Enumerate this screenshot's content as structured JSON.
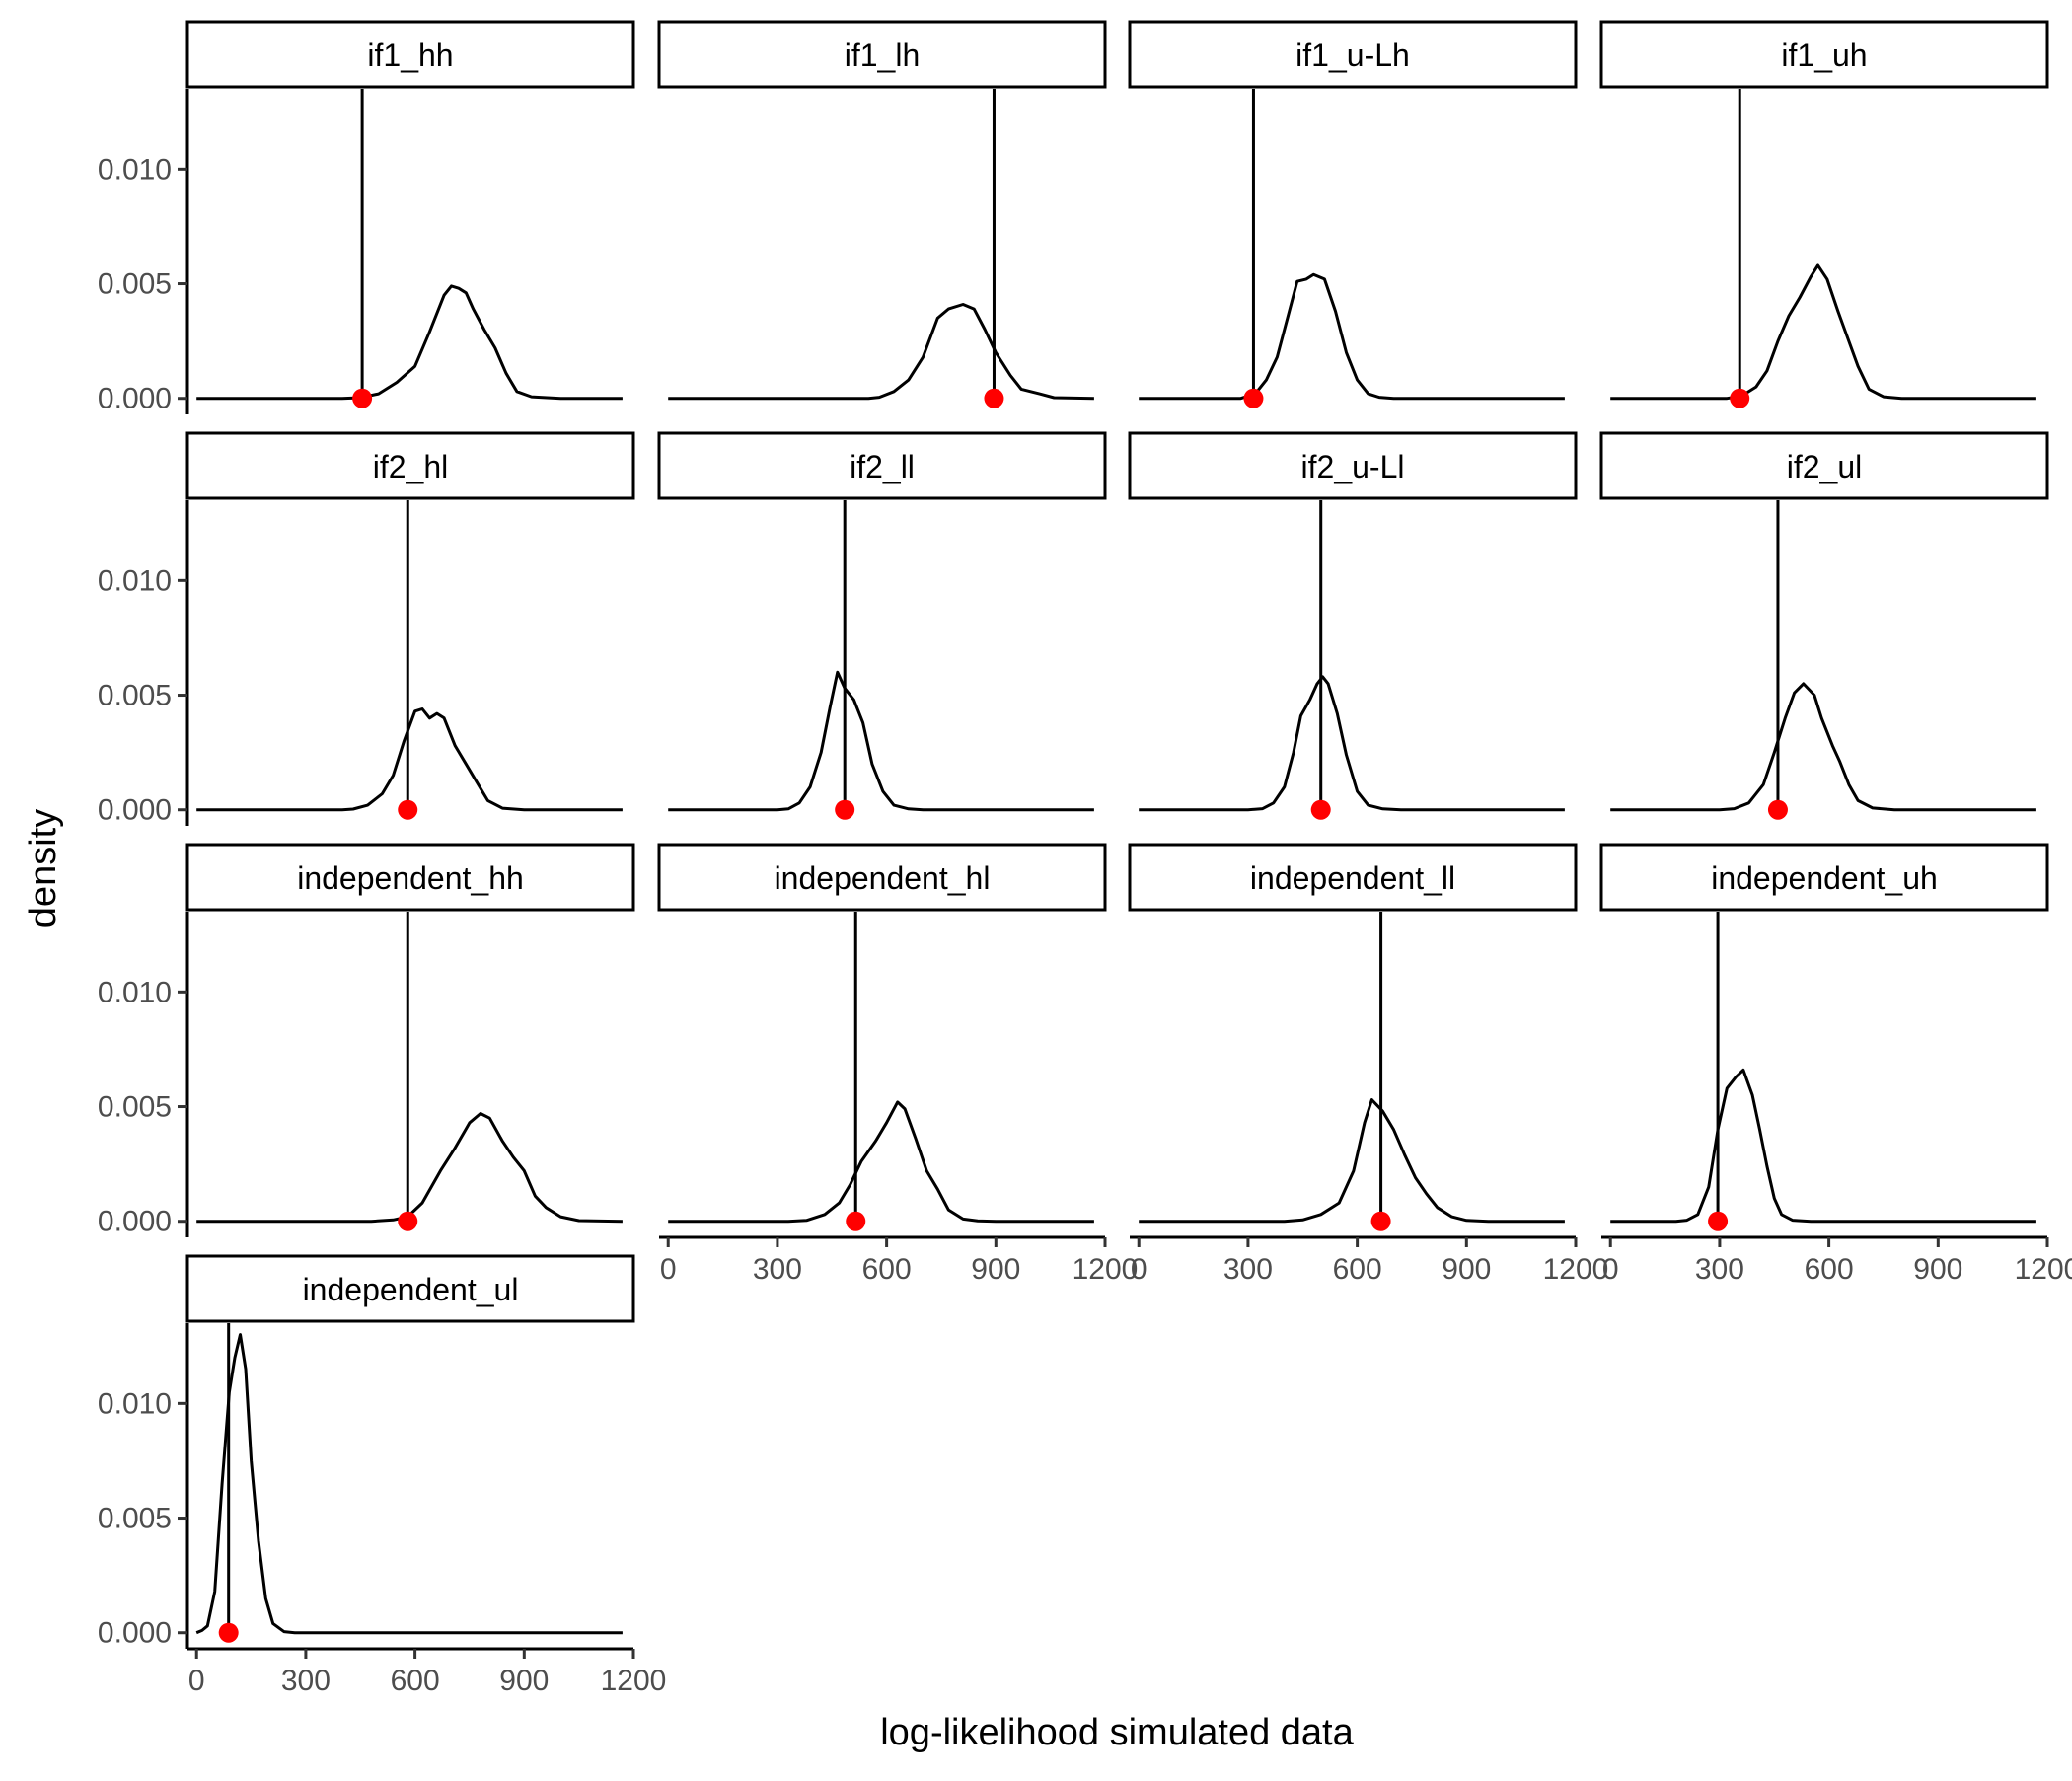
{
  "chart_data": {
    "type": "line",
    "title": "",
    "xlabel": "log-likelihood simulated data",
    "ylabel": "density",
    "xlim": [
      -25,
      1200
    ],
    "ylim": [
      -0.0007,
      0.0135
    ],
    "x_ticks": [
      0,
      300,
      600,
      900,
      1200
    ],
    "x_tick_labels": [
      "0",
      "300",
      "600",
      "900",
      "1200"
    ],
    "y_ticks": [
      0.0,
      0.005,
      0.01
    ],
    "y_tick_labels": [
      "0.000",
      "0.005",
      "0.010"
    ],
    "grid": false,
    "layout": "facet wrap, 4 columns",
    "colors": {
      "density_line": "#000000",
      "observed_point": "#ff0000",
      "observed_line": "#000000"
    },
    "panels": [
      {
        "label": "if1_hh",
        "observed": 455,
        "density": [
          [
            0,
            0
          ],
          [
            400,
            0
          ],
          [
            450,
            3e-05
          ],
          [
            500,
            0.0002
          ],
          [
            550,
            0.0007
          ],
          [
            600,
            0.0014
          ],
          [
            640,
            0.0029
          ],
          [
            680,
            0.0045
          ],
          [
            700,
            0.0049
          ],
          [
            720,
            0.0048
          ],
          [
            740,
            0.0046
          ],
          [
            760,
            0.0039
          ],
          [
            790,
            0.003
          ],
          [
            820,
            0.0022
          ],
          [
            850,
            0.0011
          ],
          [
            880,
            0.0003
          ],
          [
            920,
            7e-05
          ],
          [
            1000,
            0
          ],
          [
            1170,
            0
          ]
        ]
      },
      {
        "label": "if1_lh",
        "observed": 895,
        "density": [
          [
            0,
            0
          ],
          [
            550,
            0
          ],
          [
            580,
            5e-05
          ],
          [
            620,
            0.0003
          ],
          [
            660,
            0.0008
          ],
          [
            700,
            0.0018
          ],
          [
            740,
            0.0035
          ],
          [
            770,
            0.0039
          ],
          [
            810,
            0.0041
          ],
          [
            840,
            0.0039
          ],
          [
            870,
            0.003
          ],
          [
            900,
            0.002
          ],
          [
            940,
            0.001
          ],
          [
            970,
            0.0004
          ],
          [
            1020,
            0.0002
          ],
          [
            1060,
            3e-05
          ],
          [
            1170,
            0
          ]
        ]
      },
      {
        "label": "if1_u-Lh",
        "observed": 315,
        "density": [
          [
            0,
            0
          ],
          [
            280,
            0
          ],
          [
            320,
            0.0002
          ],
          [
            350,
            0.0008
          ],
          [
            380,
            0.0018
          ],
          [
            410,
            0.0036
          ],
          [
            435,
            0.0051
          ],
          [
            460,
            0.0052
          ],
          [
            480,
            0.0054
          ],
          [
            510,
            0.0052
          ],
          [
            540,
            0.0038
          ],
          [
            570,
            0.002
          ],
          [
            600,
            0.0008
          ],
          [
            630,
            0.0002
          ],
          [
            660,
            5e-05
          ],
          [
            700,
            0
          ],
          [
            1170,
            0
          ]
        ]
      },
      {
        "label": "if1_uh",
        "observed": 355,
        "density": [
          [
            0,
            0
          ],
          [
            320,
            0
          ],
          [
            360,
            0.0001
          ],
          [
            400,
            0.0005
          ],
          [
            430,
            0.0012
          ],
          [
            460,
            0.0025
          ],
          [
            490,
            0.0036
          ],
          [
            520,
            0.0044
          ],
          [
            550,
            0.0053
          ],
          [
            570,
            0.0058
          ],
          [
            595,
            0.0052
          ],
          [
            625,
            0.0038
          ],
          [
            650,
            0.0027
          ],
          [
            680,
            0.0014
          ],
          [
            710,
            0.0004
          ],
          [
            750,
            7e-05
          ],
          [
            800,
            0
          ],
          [
            1170,
            0
          ]
        ]
      },
      {
        "label": "if2_hl",
        "observed": 580,
        "density": [
          [
            0,
            0
          ],
          [
            400,
            0
          ],
          [
            430,
            3e-05
          ],
          [
            470,
            0.0002
          ],
          [
            510,
            0.0007
          ],
          [
            540,
            0.0015
          ],
          [
            570,
            0.003
          ],
          [
            600,
            0.0043
          ],
          [
            620,
            0.0044
          ],
          [
            640,
            0.004
          ],
          [
            660,
            0.0042
          ],
          [
            680,
            0.004
          ],
          [
            710,
            0.0028
          ],
          [
            740,
            0.002
          ],
          [
            770,
            0.0012
          ],
          [
            800,
            0.0004
          ],
          [
            840,
            7e-05
          ],
          [
            900,
            0
          ],
          [
            1170,
            0
          ]
        ]
      },
      {
        "label": "if2_ll",
        "observed": 485,
        "density": [
          [
            0,
            0
          ],
          [
            300,
            0
          ],
          [
            330,
            4e-05
          ],
          [
            360,
            0.0003
          ],
          [
            390,
            0.001
          ],
          [
            420,
            0.0025
          ],
          [
            445,
            0.0045
          ],
          [
            465,
            0.006
          ],
          [
            485,
            0.0053
          ],
          [
            510,
            0.0048
          ],
          [
            535,
            0.0038
          ],
          [
            560,
            0.002
          ],
          [
            590,
            0.0008
          ],
          [
            620,
            0.0002
          ],
          [
            660,
            4e-05
          ],
          [
            700,
            0
          ],
          [
            1170,
            0
          ]
        ]
      },
      {
        "label": "if2_u-Ll",
        "observed": 500,
        "density": [
          [
            0,
            0
          ],
          [
            300,
            0
          ],
          [
            340,
            5e-05
          ],
          [
            370,
            0.0003
          ],
          [
            400,
            0.001
          ],
          [
            425,
            0.0025
          ],
          [
            445,
            0.0041
          ],
          [
            470,
            0.0048
          ],
          [
            490,
            0.0055
          ],
          [
            505,
            0.0058
          ],
          [
            520,
            0.0055
          ],
          [
            545,
            0.0042
          ],
          [
            570,
            0.0024
          ],
          [
            600,
            0.0008
          ],
          [
            630,
            0.0002
          ],
          [
            670,
            4e-05
          ],
          [
            720,
            0
          ],
          [
            1170,
            0
          ]
        ]
      },
      {
        "label": "if2_ul",
        "observed": 460,
        "density": [
          [
            0,
            0
          ],
          [
            300,
            0
          ],
          [
            340,
            5e-05
          ],
          [
            380,
            0.0003
          ],
          [
            420,
            0.0011
          ],
          [
            450,
            0.0025
          ],
          [
            480,
            0.004
          ],
          [
            505,
            0.0051
          ],
          [
            530,
            0.0055
          ],
          [
            560,
            0.005
          ],
          [
            580,
            0.004
          ],
          [
            610,
            0.0028
          ],
          [
            630,
            0.0021
          ],
          [
            655,
            0.0011
          ],
          [
            680,
            0.0004
          ],
          [
            720,
            8e-05
          ],
          [
            780,
            0
          ],
          [
            1170,
            0
          ]
        ]
      },
      {
        "label": "independent_hh",
        "observed": 580,
        "density": [
          [
            0,
            0
          ],
          [
            480,
            0
          ],
          [
            540,
            6e-05
          ],
          [
            580,
            0.0002
          ],
          [
            620,
            0.0008
          ],
          [
            670,
            0.0022
          ],
          [
            710,
            0.0032
          ],
          [
            750,
            0.0043
          ],
          [
            780,
            0.0047
          ],
          [
            805,
            0.0045
          ],
          [
            840,
            0.0035
          ],
          [
            870,
            0.0028
          ],
          [
            900,
            0.0022
          ],
          [
            930,
            0.0011
          ],
          [
            960,
            0.0006
          ],
          [
            1000,
            0.0002
          ],
          [
            1050,
            3e-05
          ],
          [
            1170,
            0
          ]
        ]
      },
      {
        "label": "independent_hl",
        "observed": 515,
        "density": [
          [
            0,
            0
          ],
          [
            330,
            0
          ],
          [
            380,
            4e-05
          ],
          [
            430,
            0.0003
          ],
          [
            470,
            0.0008
          ],
          [
            500,
            0.0016
          ],
          [
            530,
            0.0026
          ],
          [
            570,
            0.0035
          ],
          [
            600,
            0.0043
          ],
          [
            630,
            0.0052
          ],
          [
            650,
            0.0049
          ],
          [
            680,
            0.0036
          ],
          [
            710,
            0.0022
          ],
          [
            740,
            0.0014
          ],
          [
            770,
            0.0005
          ],
          [
            810,
            0.0001
          ],
          [
            850,
            2e-05
          ],
          [
            900,
            0
          ],
          [
            1170,
            0
          ]
        ]
      },
      {
        "label": "independent_ll",
        "observed": 665,
        "density": [
          [
            0,
            0
          ],
          [
            400,
            0
          ],
          [
            450,
            6e-05
          ],
          [
            500,
            0.0003
          ],
          [
            550,
            0.0008
          ],
          [
            590,
            0.0022
          ],
          [
            620,
            0.0043
          ],
          [
            640,
            0.0053
          ],
          [
            670,
            0.0048
          ],
          [
            700,
            0.004
          ],
          [
            730,
            0.0029
          ],
          [
            760,
            0.0019
          ],
          [
            790,
            0.0012
          ],
          [
            820,
            0.0006
          ],
          [
            860,
            0.0002
          ],
          [
            900,
            4e-05
          ],
          [
            960,
            0
          ],
          [
            1170,
            0
          ]
        ]
      },
      {
        "label": "independent_uh",
        "observed": 295,
        "density": [
          [
            0,
            0
          ],
          [
            180,
            0
          ],
          [
            210,
            5e-05
          ],
          [
            240,
            0.0003
          ],
          [
            270,
            0.0015
          ],
          [
            295,
            0.004
          ],
          [
            320,
            0.0058
          ],
          [
            345,
            0.0063
          ],
          [
            365,
            0.0066
          ],
          [
            390,
            0.0055
          ],
          [
            410,
            0.004
          ],
          [
            430,
            0.0024
          ],
          [
            450,
            0.001
          ],
          [
            470,
            0.0003
          ],
          [
            500,
            5e-05
          ],
          [
            550,
            0
          ],
          [
            1170,
            0
          ]
        ]
      },
      {
        "label": "independent_ul",
        "observed": 88,
        "density": [
          [
            0,
            0
          ],
          [
            15,
            0.0001
          ],
          [
            30,
            0.0003
          ],
          [
            50,
            0.0018
          ],
          [
            70,
            0.0065
          ],
          [
            90,
            0.0105
          ],
          [
            105,
            0.012
          ],
          [
            120,
            0.013
          ],
          [
            135,
            0.0115
          ],
          [
            150,
            0.0075
          ],
          [
            170,
            0.004
          ],
          [
            190,
            0.0015
          ],
          [
            210,
            0.0004
          ],
          [
            240,
            5e-05
          ],
          [
            270,
            0
          ],
          [
            1170,
            0
          ]
        ]
      }
    ]
  }
}
